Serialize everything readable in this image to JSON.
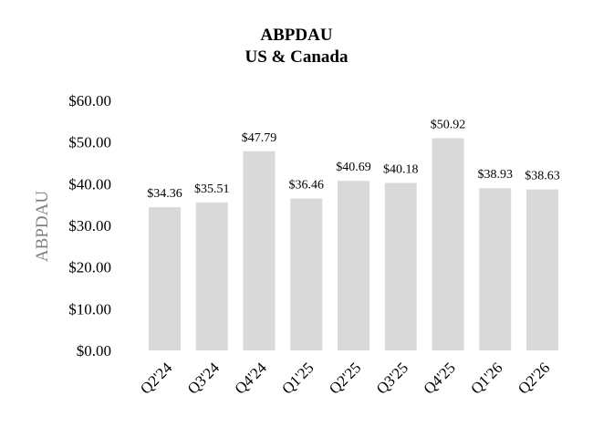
{
  "chart_data": {
    "type": "bar",
    "title": "ABPDAU",
    "subtitle": "US & Canada",
    "ylabel": "ABPDAU",
    "xlabel": "",
    "categories": [
      "Q2'24",
      "Q3'24",
      "Q4'24",
      "Q1'25",
      "Q2'25",
      "Q3'25",
      "Q4'25",
      "Q1'26",
      "Q2'26"
    ],
    "values": [
      34.36,
      35.51,
      47.79,
      36.46,
      40.69,
      40.18,
      50.92,
      38.93,
      38.63
    ],
    "data_labels": [
      "$34.36",
      "$35.51",
      "$47.79",
      "$36.46",
      "$40.69",
      "$40.18",
      "$50.92",
      "$38.93",
      "$38.63"
    ],
    "yticks": [
      0,
      10,
      20,
      30,
      40,
      50,
      60
    ],
    "ytick_labels": [
      "$0.00",
      "$10.00",
      "$20.00",
      "$30.00",
      "$40.00",
      "$50.00",
      "$60.00"
    ],
    "ylim": [
      0,
      60
    ],
    "grid": false,
    "legend": "none",
    "bar_color": "#d9d9d9",
    "ylabel_color": "#7f7f7f"
  }
}
